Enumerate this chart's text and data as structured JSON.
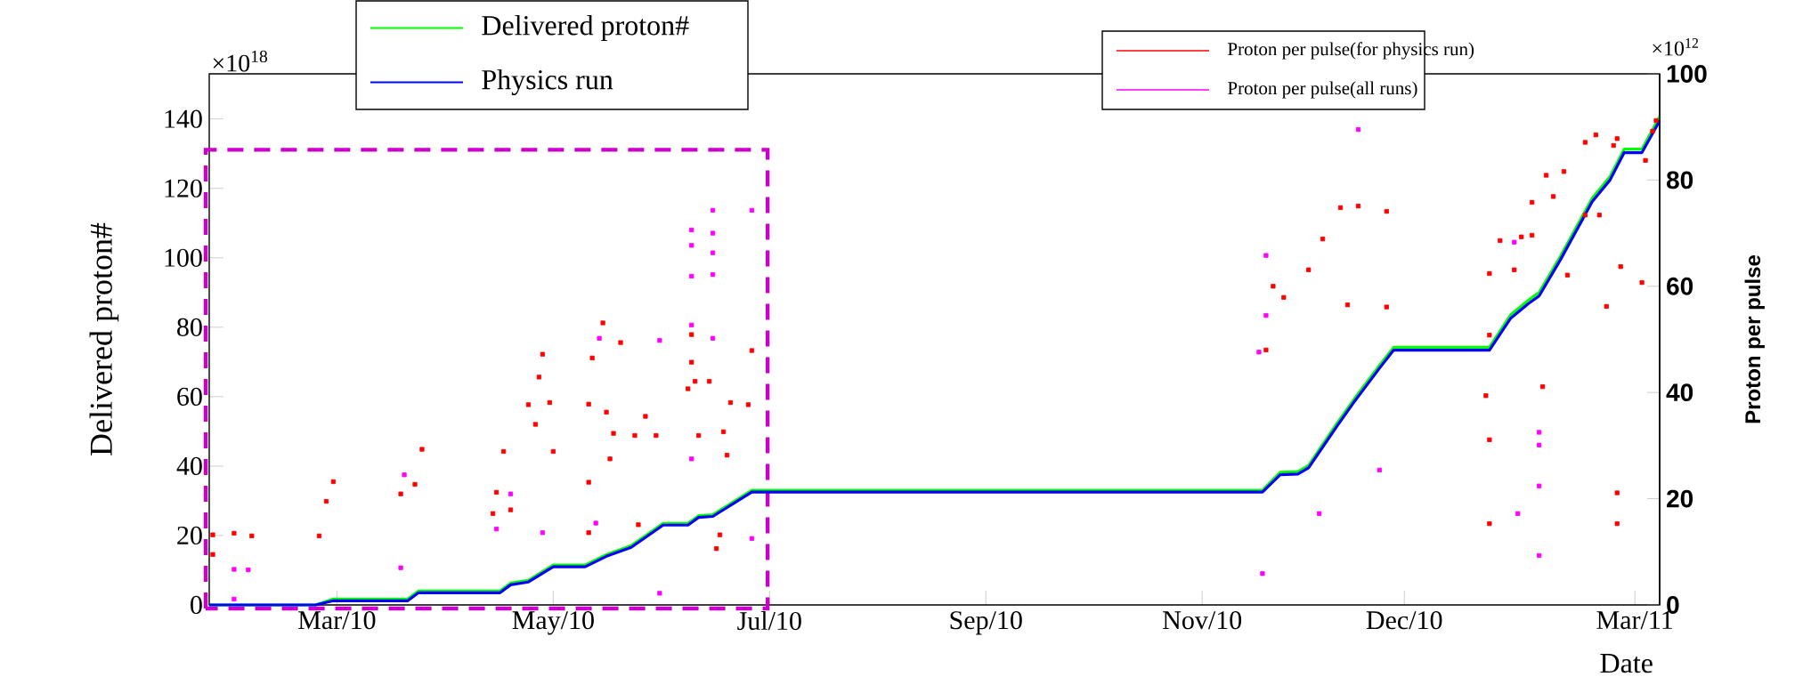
{
  "chart_data": {
    "type": "line",
    "xlabel": "Date",
    "ylabel": "Delivered proton#",
    "y2label": "Proton per pulse",
    "annotations": [
      "×10$^{18}$",
      "×10$^{12}$"
    ],
    "xlim": [
      "2010-01-28",
      "2011-03-13"
    ],
    "xticks": [
      {
        "value": "2010-03-05",
        "label": "Mar/10"
      },
      {
        "value": "2010-05-05",
        "label": "May/10"
      },
      {
        "value": "2010-07-05",
        "label": "Jul/10"
      },
      {
        "value": "2010-09-04",
        "label": "Sep/10"
      },
      {
        "value": "2010-11-04",
        "label": "Nov/10"
      },
      {
        "value": "2010-12-31",
        "label": "Dec/10"
      },
      {
        "value": "2011-03-06",
        "label": "Mar/11"
      }
    ],
    "ylim": [
      0,
      153
    ],
    "yticks": [
      0,
      20,
      40,
      60,
      80,
      100,
      120,
      140
    ],
    "y2lim": [
      0,
      100
    ],
    "y2ticks": [
      0,
      20,
      40,
      60,
      80,
      100
    ],
    "legend": "top",
    "x": [
      "2010-01-28",
      "2010-02-27",
      "2010-03-04",
      "2010-03-25",
      "2010-03-28",
      "2010-04-20",
      "2010-04-23",
      "2010-04-28",
      "2010-05-05",
      "2010-05-14",
      "2010-05-20",
      "2010-05-27",
      "2010-06-05",
      "2010-06-12",
      "2010-06-15",
      "2010-06-19",
      "2010-06-30",
      "2010-11-21",
      "2010-11-26",
      "2010-12-01",
      "2010-12-04",
      "2010-12-12",
      "2010-12-17",
      "2010-12-24",
      "2010-12-28",
      "2011-01-24",
      "2011-01-30",
      "2011-02-04",
      "2011-02-07",
      "2011-02-13",
      "2011-02-22",
      "2011-02-27",
      "2011-03-03",
      "2011-03-08",
      "2011-03-13"
    ],
    "series": [
      {
        "name": "Delivered proton#",
        "color": "#00ff00",
        "values": [
          0,
          0,
          1.7,
          1.7,
          4,
          4,
          6.3,
          7.1,
          11.5,
          11.5,
          14.5,
          17.1,
          23.5,
          23.5,
          25.7,
          26,
          33,
          33,
          38.2,
          38.4,
          40.2,
          52.3,
          59.5,
          69,
          74.2,
          74.2,
          83.6,
          87.8,
          90,
          100.4,
          117.2,
          123.4,
          131.3,
          131.3,
          140.7
        ]
      },
      {
        "name": "Physics run",
        "color": "#0000ff",
        "values": [
          0,
          0,
          1.2,
          1.2,
          3.5,
          3.5,
          5.8,
          6.6,
          11,
          11,
          14,
          16.6,
          23,
          23,
          25.2,
          25.5,
          32.5,
          32.5,
          37.5,
          37.7,
          39.5,
          51.5,
          58.7,
          68.2,
          73.4,
          73.4,
          82.6,
          86.8,
          89,
          99.4,
          116.2,
          122.4,
          130.3,
          130.3,
          139.5
        ]
      },
      {
        "name": "Proton per pulse(for physics run)",
        "color": "#ff0000",
        "type": "scatter",
        "axis": "y2",
        "x": [
          "2010-01-29",
          "2010-02-04",
          "2010-02-09",
          "2010-01-29",
          "2010-02-28",
          "2010-03-02",
          "2010-03-04",
          "2010-03-27",
          "2010-03-29",
          "2010-03-23",
          "2010-04-21",
          "2010-04-19",
          "2010-04-23",
          "2010-04-18",
          "2010-04-28",
          "2010-04-30",
          "2010-05-02",
          "2010-05-01",
          "2010-05-04",
          "2010-05-05",
          "2010-05-16",
          "2010-05-15",
          "2010-05-19",
          "2010-05-20",
          "2010-05-21",
          "2010-05-24",
          "2010-05-22",
          "2010-05-28",
          "2010-05-31",
          "2010-06-03",
          "2010-05-15",
          "2010-05-15",
          "2010-06-13",
          "2010-06-13",
          "2010-06-12",
          "2010-06-14",
          "2010-06-18",
          "2010-06-15",
          "2010-06-24",
          "2010-06-29",
          "2010-06-22",
          "2010-06-23",
          "2010-06-30",
          "2010-06-20",
          "2010-06-21",
          "2010-05-29",
          "2010-11-24",
          "2010-11-27",
          "2010-11-22",
          "2010-12-04",
          "2010-12-08",
          "2010-12-13",
          "2010-12-18",
          "2010-12-26",
          "2010-12-15",
          "2010-12-26",
          "2011-01-27",
          "2011-02-02",
          "2011-02-05",
          "2011-01-24",
          "2011-01-31",
          "2011-01-24",
          "2011-02-09",
          "2011-02-14",
          "2011-02-11",
          "2011-02-05",
          "2011-02-20",
          "2011-02-23",
          "2011-02-28",
          "2011-03-01",
          "2011-02-24",
          "2011-02-20",
          "2011-03-02",
          "2011-03-09",
          "2011-03-11",
          "2011-03-12",
          "2011-03-01",
          "2011-03-01",
          "2011-01-24",
          "2011-01-24",
          "2011-01-23",
          "2011-02-08",
          "2011-02-26",
          "2011-02-15",
          "2011-03-08"
        ],
        "values": [
          13.2,
          13.5,
          13,
          9.5,
          13,
          19.5,
          23.2,
          22.7,
          29.3,
          20.9,
          28.9,
          21.2,
          17.9,
          17.2,
          37.7,
          34,
          47.2,
          42.9,
          38.1,
          28.9,
          46.5,
          37.8,
          53.1,
          36.3,
          27.5,
          49.4,
          32.3,
          31.9,
          35.5,
          31.9,
          23.1,
          13.6,
          45.7,
          50.9,
          40.7,
          42.1,
          42.1,
          31.9,
          38.1,
          37.7,
          32.6,
          28.2,
          47.9,
          10.6,
          13.2,
          15.1,
          60,
          57.9,
          48,
          63.1,
          68.9,
          74.8,
          75.1,
          74.1,
          56.5,
          56.1,
          68.6,
          69.3,
          69.6,
          62.4,
          63.1,
          50.8,
          80.9,
          81.6,
          76.9,
          75.8,
          87.1,
          88.5,
          86.5,
          87.8,
          73.4,
          73.4,
          63.7,
          83.7,
          89.2,
          91.2,
          21.1,
          15.3,
          15.3,
          31.1,
          39.4,
          41.1,
          56.2,
          62.1,
          60.7
        ]
      },
      {
        "name": "Proton per pulse(all runs)",
        "color": "#ff00ff",
        "type": "scatter",
        "axis": "y2",
        "x": [
          "2010-02-04",
          "2010-02-04",
          "2010-02-08",
          "2010-03-23",
          "2010-03-24",
          "2010-04-19",
          "2010-04-23",
          "2010-05-02",
          "2010-05-18",
          "2010-05-17",
          "2010-06-04",
          "2010-06-04",
          "2010-06-13",
          "2010-06-13",
          "2010-06-13",
          "2010-06-19",
          "2010-06-19",
          "2010-06-19",
          "2010-06-19",
          "2010-06-19",
          "2010-06-13",
          "2010-06-13",
          "2010-06-30",
          "2010-06-30",
          "2010-12-18",
          "2010-11-22",
          "2010-11-22",
          "2010-11-20",
          "2010-11-21",
          "2010-12-24",
          "2010-12-07",
          "2011-01-31",
          "2011-02-07",
          "2011-02-07",
          "2011-02-07",
          "2011-02-07",
          "2011-02-01"
        ],
        "values": [
          1.1,
          6.7,
          6.6,
          7,
          24.5,
          14.3,
          20.9,
          13.6,
          50.2,
          15.4,
          2.2,
          49.8,
          70.6,
          67.7,
          61.9,
          74.3,
          70,
          66.3,
          62.2,
          50.2,
          52.7,
          27.5,
          74.3,
          12.5,
          89.5,
          65.8,
          54.5,
          47.6,
          5.9,
          25.4,
          17.2,
          68.3,
          32.5,
          30.1,
          22.4,
          9.3,
          17.2
        ]
      }
    ]
  }
}
